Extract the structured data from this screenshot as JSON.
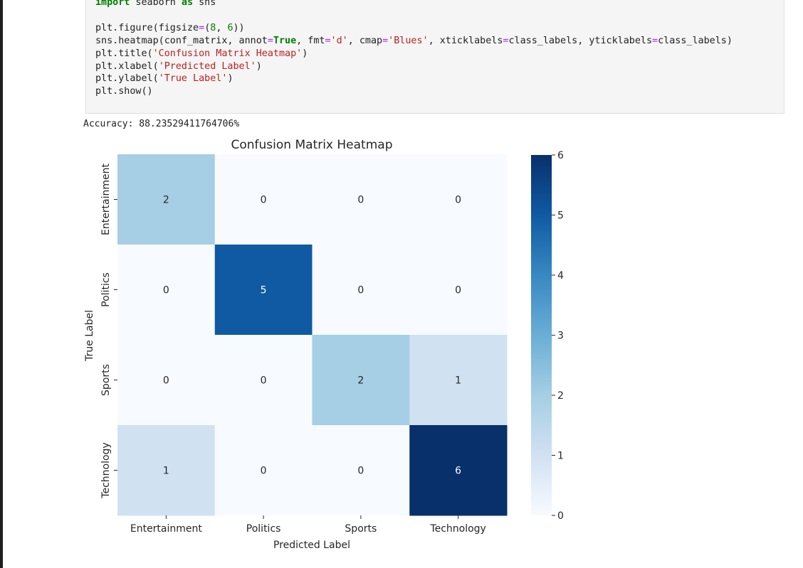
{
  "code_cell": {
    "lines": [
      [
        {
          "t": "import",
          "c": "kw"
        },
        {
          "t": " seaborn "
        },
        {
          "t": "as",
          "c": "kw"
        },
        {
          "t": " sns"
        }
      ],
      [],
      [
        {
          "t": "plt.figure(figsize"
        },
        {
          "t": "=",
          "c": "op"
        },
        {
          "t": "("
        },
        {
          "t": "8",
          "c": "num"
        },
        {
          "t": ", "
        },
        {
          "t": "6",
          "c": "num"
        },
        {
          "t": "))"
        }
      ],
      [
        {
          "t": "sns.heatmap(conf_matrix, annot"
        },
        {
          "t": "=",
          "c": "op"
        },
        {
          "t": "True",
          "c": "kw"
        },
        {
          "t": ", fmt"
        },
        {
          "t": "=",
          "c": "op"
        },
        {
          "t": "'d'",
          "c": "str"
        },
        {
          "t": ", cmap"
        },
        {
          "t": "=",
          "c": "op"
        },
        {
          "t": "'Blues'",
          "c": "str"
        },
        {
          "t": ", xticklabels"
        },
        {
          "t": "=",
          "c": "op"
        },
        {
          "t": "class_labels, yticklabels"
        },
        {
          "t": "=",
          "c": "op"
        },
        {
          "t": "class_labels)"
        }
      ],
      [
        {
          "t": "plt.title("
        },
        {
          "t": "'Confusion Matrix Heatmap'",
          "c": "str"
        },
        {
          "t": ")"
        }
      ],
      [
        {
          "t": "plt.xlabel("
        },
        {
          "t": "'Predicted Label'",
          "c": "str"
        },
        {
          "t": ")"
        }
      ],
      [
        {
          "t": "plt.ylabel("
        },
        {
          "t": "'True Label'",
          "c": "str"
        },
        {
          "t": ")"
        }
      ],
      [
        {
          "t": "plt.show()"
        }
      ]
    ]
  },
  "output_text": "Accuracy: 88.23529411764706%",
  "chart_data": {
    "type": "heatmap",
    "title": "Confusion Matrix Heatmap",
    "xlabel": "Predicted Label",
    "ylabel": "True Label",
    "x_categories": [
      "Entertainment",
      "Politics",
      "Sports",
      "Technology"
    ],
    "y_categories": [
      "Entertainment",
      "Politics",
      "Sports",
      "Technology"
    ],
    "values": [
      [
        2,
        0,
        0,
        0
      ],
      [
        0,
        5,
        0,
        0
      ],
      [
        0,
        0,
        2,
        1
      ],
      [
        1,
        0,
        0,
        6
      ]
    ],
    "colormap": "Blues",
    "colorbar": {
      "min": 0,
      "max": 6,
      "ticks": [
        "0",
        "1",
        "2",
        "3",
        "4",
        "5",
        "6"
      ]
    },
    "colors": [
      "#f7fbff",
      "#d0e1f2",
      "#a6cee4",
      "#6aaed6",
      "#3888c1",
      "#0f5aa3",
      "#08306b"
    ]
  }
}
